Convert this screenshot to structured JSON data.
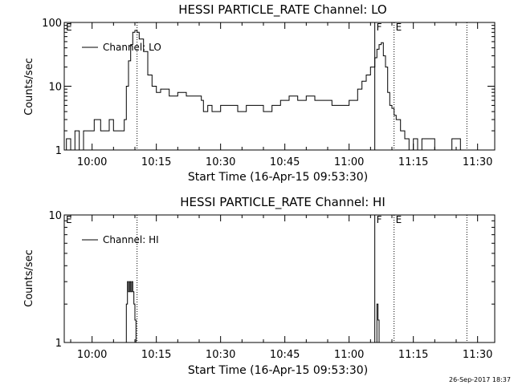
{
  "chart_data": [
    {
      "type": "line",
      "title": "HESSI PARTICLE_RATE Channel: LO",
      "xlabel": "Start Time (16-Apr-15 09:53:30)",
      "ylabel": "Counts/sec",
      "yscale": "log",
      "ylim": [
        1,
        100
      ],
      "xlim": [
        "09:53:30",
        "11:34:00"
      ],
      "x_ticks": [
        "10:00",
        "10:15",
        "10:30",
        "10:45",
        "11:00",
        "11:15",
        "11:30"
      ],
      "y_ticks": [
        "1",
        "10",
        "100"
      ],
      "legend": "top-left",
      "series": [
        {
          "name": "Channel: LO",
          "x": [
            "09:53:30",
            "09:54:00",
            "09:55:00",
            "09:56:00",
            "09:57:00",
            "09:58:00",
            "10:00:00",
            "10:00:30",
            "10:02:00",
            "10:03:00",
            "10:04:00",
            "10:05:00",
            "10:06:00",
            "10:06:30",
            "10:07:30",
            "10:08:00",
            "10:08:30",
            "10:09:00",
            "10:09:30",
            "10:10:00",
            "10:10:30",
            "10:11:00",
            "10:12:00",
            "10:13:00",
            "10:14:00",
            "10:15:00",
            "10:16:00",
            "10:18:00",
            "10:20:00",
            "10:22:00",
            "10:24:00",
            "10:25:30",
            "10:26:00",
            "10:27:00",
            "10:28:00",
            "10:30:00",
            "10:32:00",
            "10:34:00",
            "10:36:00",
            "10:38:00",
            "10:40:00",
            "10:42:00",
            "10:44:00",
            "10:46:00",
            "10:48:00",
            "10:50:00",
            "10:52:00",
            "10:54:00",
            "10:56:00",
            "10:58:00",
            "11:00:00",
            "11:02:00",
            "11:03:00",
            "11:04:00",
            "11:05:00",
            "11:06:00",
            "11:06:30",
            "11:07:00",
            "11:07:30",
            "11:08:00",
            "11:08:30",
            "11:09:00",
            "11:09:30",
            "11:10:00",
            "11:10:30",
            "11:11:00",
            "11:12:00",
            "11:13:00",
            "11:14:00",
            "11:15:00",
            "11:16:00",
            "11:17:00",
            "11:20:00",
            "11:24:00",
            "11:26:00"
          ],
          "values": [
            1,
            1.5,
            1,
            2,
            1,
            2,
            2,
            3,
            2,
            2,
            3,
            2,
            2,
            2,
            3,
            10,
            25,
            45,
            70,
            75,
            70,
            55,
            35,
            15,
            10,
            8,
            9,
            7,
            8,
            7,
            7,
            6,
            4,
            5,
            4,
            5,
            5,
            4,
            5,
            5,
            4,
            5,
            6,
            7,
            6,
            7,
            6,
            6,
            5,
            5,
            6,
            9,
            12,
            15,
            20,
            28,
            38,
            45,
            48,
            30,
            20,
            8,
            5,
            4.5,
            3.5,
            3,
            2,
            1.5,
            1,
            1.5,
            1,
            1.5,
            1,
            1.5,
            1
          ]
        }
      ],
      "markers": [
        {
          "label": "E",
          "x": "09:53:30"
        },
        {
          "label": "F",
          "x": "11:06:00"
        },
        {
          "label": "E",
          "x": "11:10:30"
        }
      ],
      "dotted_lines": [
        "10:10:30",
        "11:10:30",
        "11:27:30"
      ],
      "solid_lines": [
        "11:06:00"
      ]
    },
    {
      "type": "line",
      "title": "HESSI PARTICLE_RATE Channel: HI",
      "xlabel": "Start Time (16-Apr-15 09:53:30)",
      "ylabel": "Counts/sec",
      "yscale": "log",
      "ylim": [
        1,
        10
      ],
      "xlim": [
        "09:53:30",
        "11:34:00"
      ],
      "x_ticks": [
        "10:00",
        "10:15",
        "10:30",
        "10:45",
        "11:00",
        "11:15",
        "11:30"
      ],
      "y_ticks": [
        "1",
        "10"
      ],
      "legend": "top-left",
      "series": [
        {
          "name": "Channel: HI",
          "x": [
            "09:53:30",
            "10:07:45",
            "10:08:00",
            "10:08:15",
            "10:08:30",
            "10:08:45",
            "10:09:00",
            "10:09:15",
            "10:09:30",
            "10:09:45",
            "10:10:00",
            "10:10:15",
            "11:06:15",
            "11:06:30",
            "11:06:45",
            "11:07:00",
            "11:07:15",
            "11:07:30",
            "11:34:00"
          ],
          "values": [
            1,
            1,
            2,
            3,
            2.5,
            3,
            2.5,
            3,
            2.5,
            2,
            1.5,
            1,
            1,
            2,
            1.5,
            1,
            1,
            1,
            1
          ]
        }
      ],
      "markers": [
        {
          "label": "E",
          "x": "09:53:30"
        },
        {
          "label": "F",
          "x": "11:06:00"
        },
        {
          "label": "E",
          "x": "11:10:30"
        }
      ],
      "dotted_lines": [
        "10:10:30",
        "11:10:30",
        "11:27:30"
      ],
      "solid_lines": [
        "11:06:00"
      ]
    }
  ],
  "timestamp": "26-Sep-2017 18:37"
}
